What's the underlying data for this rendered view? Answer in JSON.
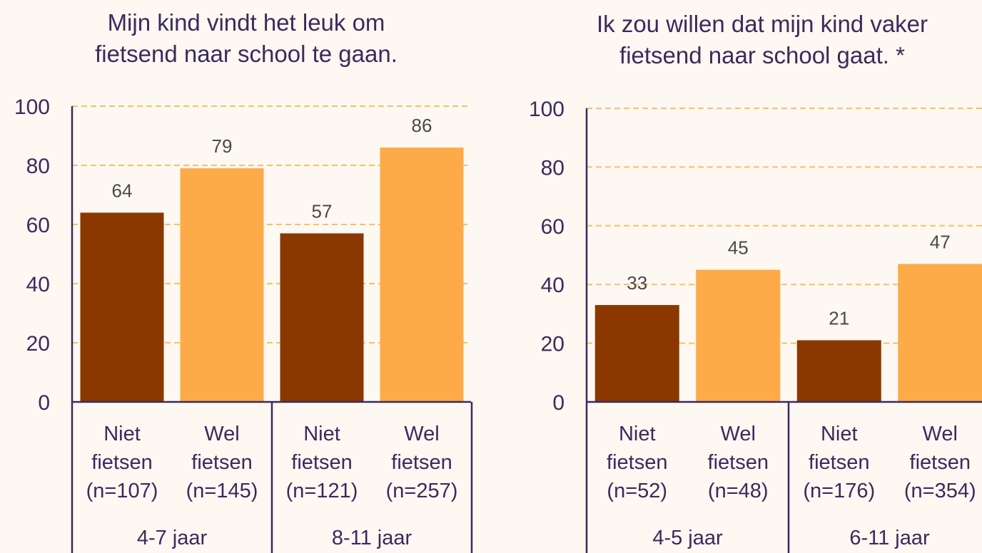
{
  "colors": {
    "background": "#fdf8f2",
    "niet": "#8a3800",
    "wel": "#fdab48",
    "axis": "#3b2a5c",
    "grid": "#f5c16a"
  },
  "chart_data": [
    {
      "type": "bar",
      "title": [
        "Mijn kind vindt het leuk om",
        "fietsend naar school te gaan."
      ],
      "ylim": [
        0,
        100
      ],
      "yticks": [
        "0",
        "20",
        "40",
        "60",
        "80",
        "100"
      ],
      "grid": true,
      "bars": [
        {
          "label": [
            "Niet",
            "fietsen",
            "(n=107)"
          ],
          "value": 64,
          "series": "niet",
          "value_label": "64"
        },
        {
          "label": [
            "Wel",
            "fietsen",
            "(n=145)"
          ],
          "value": 79,
          "series": "wel",
          "value_label": "79"
        },
        {
          "label": [
            "Niet",
            "fietsen",
            "(n=121)"
          ],
          "value": 57,
          "series": "niet",
          "value_label": "57"
        },
        {
          "label": [
            "Wel",
            "fietsen",
            "(n=257)"
          ],
          "value": 86,
          "series": "wel",
          "value_label": "86"
        }
      ],
      "groups": [
        {
          "label": "4-7 jaar",
          "bars": [
            0,
            1
          ]
        },
        {
          "label": "8-11 jaar",
          "bars": [
            2,
            3
          ]
        }
      ]
    },
    {
      "type": "bar",
      "title": [
        "Ik zou willen dat mijn kind vaker",
        "fietsend naar school gaat. *"
      ],
      "ylim": [
        0,
        100
      ],
      "yticks": [
        "0",
        "20",
        "40",
        "60",
        "80",
        "100"
      ],
      "grid": true,
      "bars": [
        {
          "label": [
            "Niet",
            "fietsen",
            "(n=52)"
          ],
          "value": 33,
          "series": "niet",
          "value_label": "33"
        },
        {
          "label": [
            "Wel",
            "fietsen",
            "(n=48)"
          ],
          "value": 45,
          "series": "wel",
          "value_label": "45"
        },
        {
          "label": [
            "Niet",
            "fietsen",
            "(n=176)"
          ],
          "value": 21,
          "series": "niet",
          "value_label": "21"
        },
        {
          "label": [
            "Wel",
            "fietsen",
            "(n=354)"
          ],
          "value": 47,
          "series": "wel",
          "value_label": "47"
        }
      ],
      "groups": [
        {
          "label": "4-5 jaar",
          "bars": [
            0,
            1
          ]
        },
        {
          "label": "6-11 jaar",
          "bars": [
            2,
            3
          ]
        }
      ]
    }
  ]
}
